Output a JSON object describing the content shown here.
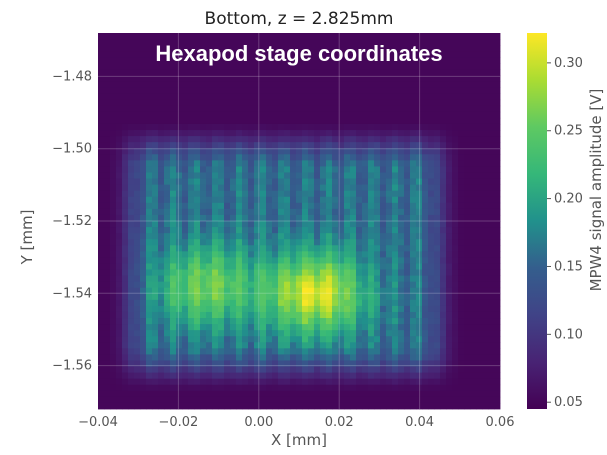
{
  "chart_data": {
    "type": "heatmap",
    "title": "Bottom, z = 2.825mm",
    "annotation": "Hexapod stage coordinates",
    "xlabel": "X [mm]",
    "ylabel": "Y [mm]",
    "xlim": [
      -0.04,
      0.06
    ],
    "ylim": [
      -1.572,
      -1.468
    ],
    "x_ticks": [
      "−0.04",
      "−0.02",
      "0.00",
      "0.02",
      "0.04",
      "0.06"
    ],
    "x_tick_values": [
      -0.04,
      -0.02,
      0.0,
      0.02,
      0.04,
      0.06
    ],
    "y_ticks": [
      "−1.48",
      "−1.50",
      "−1.52",
      "−1.54",
      "−1.56"
    ],
    "y_tick_values": [
      -1.48,
      -1.5,
      -1.52,
      -1.54,
      -1.56
    ],
    "colorbar": {
      "label": "MPW4 signal amplitude [V]",
      "colormap": "viridis",
      "range": [
        0.045,
        0.322
      ],
      "ticks": [
        "0.05",
        "0.10",
        "0.15",
        "0.20",
        "0.25",
        "0.30"
      ],
      "tick_values": [
        0.05,
        0.1,
        0.15,
        0.2,
        0.25,
        0.3
      ]
    },
    "grid": true,
    "signal_region": {
      "x_range": [
        -0.034,
        0.047
      ],
      "y_range": [
        -1.564,
        -1.496
      ],
      "background": 0.05,
      "plateau": 0.16,
      "peaks": [
        {
          "x": 0.014,
          "y": -1.54,
          "value": 0.31
        },
        {
          "x": -0.013,
          "y": -1.538,
          "value": 0.26
        }
      ]
    },
    "colors": {
      "background": "#eaeaf2",
      "grid": "#ffffff",
      "min_color": "#440154",
      "max_color": "#fde725"
    }
  }
}
